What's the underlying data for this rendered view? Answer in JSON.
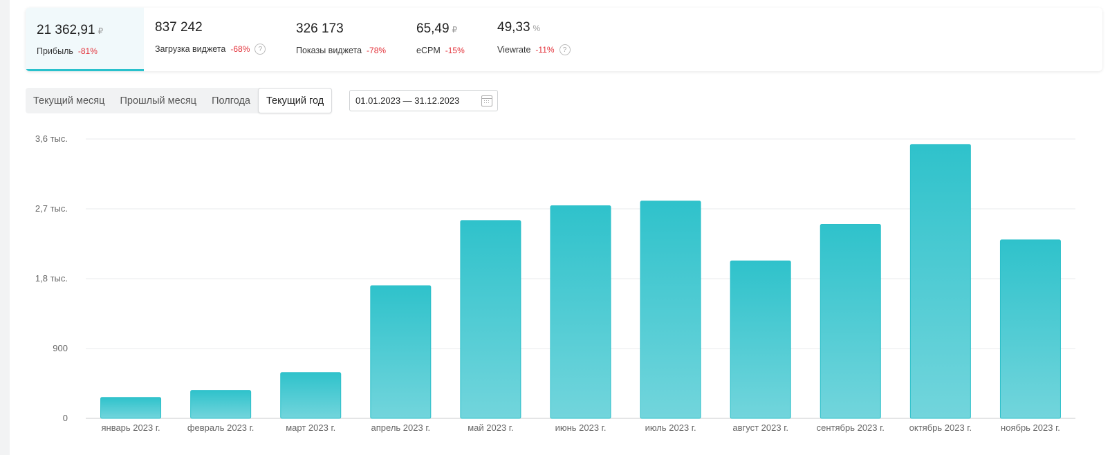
{
  "stats": [
    {
      "value": "21 362,91",
      "unit": "₽",
      "label": "Прибыль",
      "change": "-81%",
      "help": false,
      "active": true
    },
    {
      "value": "837 242",
      "unit": "",
      "label": "Загрузка виджета",
      "change": "-68%",
      "help": true,
      "active": false
    },
    {
      "value": "326 173",
      "unit": "",
      "label": "Показы виджета",
      "change": "-78%",
      "help": false,
      "active": false
    },
    {
      "value": "65,49",
      "unit": "₽",
      "label": "eCPM",
      "change": "-15%",
      "help": false,
      "active": false
    },
    {
      "value": "49,33",
      "unit": "%",
      "label": "Viewrate",
      "change": "-11%",
      "help": true,
      "active": false
    }
  ],
  "periods": [
    {
      "label": "Текущий месяц",
      "active": false
    },
    {
      "label": "Прошлый месяц",
      "active": false
    },
    {
      "label": "Полгода",
      "active": false
    },
    {
      "label": "Текущий год",
      "active": true
    }
  ],
  "date_range": "01.01.2023 — 31.12.2023",
  "colors": {
    "accent": "#29c1cc",
    "bar_top": "#2fc2cb",
    "bar_bottom": "#72d5dc",
    "negative": "#e3323a"
  },
  "chart_data": {
    "type": "bar",
    "categories": [
      "январь 2023 г.",
      "февраль 2023 г.",
      "март 2023 г.",
      "апрель 2023 г.",
      "май 2023 г.",
      "июнь 2023 г.",
      "июль 2023 г.",
      "август 2023 г.",
      "сентябрь 2023 г.",
      "октябрь 2023 г.",
      "ноябрь 2023 г."
    ],
    "values": [
      270,
      360,
      590,
      1710,
      2550,
      2740,
      2800,
      2030,
      2500,
      3530,
      2300
    ],
    "yticks": [
      0,
      900,
      1800,
      2700,
      3600
    ],
    "ytick_labels": [
      "0",
      "900",
      "1,8 тыс.",
      "2,7 тыс.",
      "3,6 тыс."
    ],
    "ylim": [
      0,
      3600
    ],
    "grid": true
  }
}
